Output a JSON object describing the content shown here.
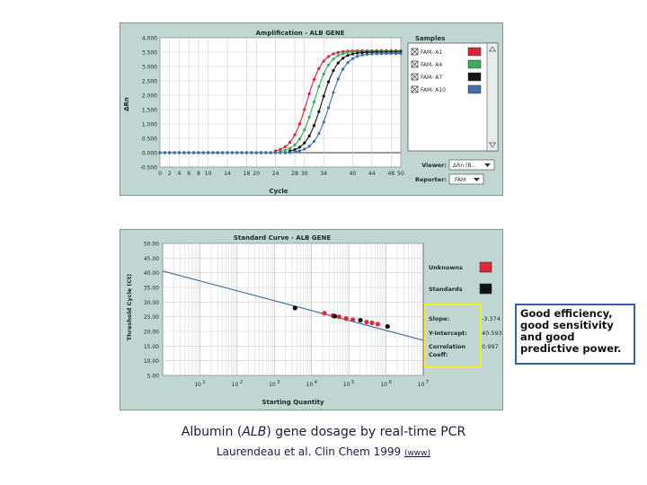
{
  "amplification": {
    "title": "Amplification - ALB GENE",
    "ylabel": "ΔRn",
    "xlabel": "Cycle",
    "y_ticks": [
      "4.000",
      "3.500",
      "3.000",
      "2.500",
      "2.000",
      "1.500",
      "1.000",
      "0.500",
      "0.000",
      "-0.500"
    ],
    "x_ticks": [
      "0",
      "2",
      "4",
      "6",
      "8",
      "10",
      "14",
      "18",
      "20",
      "24",
      "28",
      "30",
      "34",
      "40",
      "44",
      "48",
      "50"
    ],
    "samples_title": "Samples",
    "samples": [
      {
        "label": "FAM- A1",
        "color": "#d8243c"
      },
      {
        "label": "FAM- A4",
        "color": "#3cab5a"
      },
      {
        "label": "FAM- A7",
        "color": "#151515"
      },
      {
        "label": "FAM- A10",
        "color": "#3f6fa8"
      }
    ],
    "viewer_label": "Viewer:",
    "viewer_value": "ΔRn (B...",
    "reporter_label": "Reporter:",
    "reporter_value": "FAM"
  },
  "standard_curve": {
    "title": "Standard Curve - ALB GENE",
    "ylabel": "Threshold Cycle (Ct)",
    "xlabel": "Starting Quantity",
    "y_ticks": [
      "50.00",
      "45.00",
      "40.00",
      "35.00",
      "30.00",
      "25.00",
      "20.00",
      "15.00",
      "10.00",
      "5.00"
    ],
    "x_ticks": [
      {
        "base": "10",
        "exp": "1"
      },
      {
        "base": "10",
        "exp": "2"
      },
      {
        "base": "10",
        "exp": "3"
      },
      {
        "base": "10",
        "exp": "4"
      },
      {
        "base": "10",
        "exp": "5"
      },
      {
        "base": "10",
        "exp": "6"
      },
      {
        "base": "10",
        "exp": "7"
      }
    ],
    "legend_unknowns": "Unknowns",
    "legend_standards": "Standards",
    "unknowns_color": "#e0283c",
    "standards_color": "#111111",
    "slope_label": "Slope:",
    "slope_value": "-3.374",
    "intercept_label": "Y-Intercept:",
    "intercept_value": "40.593",
    "corr_label_1": "Correlation",
    "corr_label_2": "Coeff:",
    "corr_value": "0.997",
    "highlight_color": "#f2ee2a"
  },
  "callout_text": "Good efficiency, good sensitivity and good predictive power.",
  "caption": {
    "title_pre": "Albumin (",
    "title_em": "ALB",
    "title_post": ") gene dosage by real-time PCR",
    "cite": "Laurendeau et al. Clin Chem 1999",
    "link": "(www)"
  },
  "chart_data": [
    {
      "type": "line",
      "title": "Amplification - ALB GENE",
      "xlabel": "Cycle",
      "ylabel": "ΔRn",
      "xlim": [
        0,
        50
      ],
      "ylim": [
        -0.5,
        4.0
      ],
      "grid": true,
      "legend": "right",
      "baseline": 0.0,
      "series": [
        {
          "name": "FAM- A1",
          "color": "#d8243c",
          "plateau": 3.55,
          "midpoint": 30.5,
          "slope": 0.62,
          "start": 24
        },
        {
          "name": "FAM- A4",
          "color": "#3cab5a",
          "plateau": 3.53,
          "midpoint": 32.0,
          "slope": 0.62,
          "start": 25
        },
        {
          "name": "FAM- A7",
          "color": "#151515",
          "plateau": 3.5,
          "midpoint": 33.6,
          "slope": 0.62,
          "start": 27
        },
        {
          "name": "FAM- A10",
          "color": "#3f6fa8",
          "plateau": 3.45,
          "midpoint": 35.3,
          "slope": 0.62,
          "start": 28
        }
      ]
    },
    {
      "type": "scatter",
      "title": "Standard Curve - ALB GENE",
      "xlabel": "Starting Quantity",
      "ylabel": "Threshold Cycle (Ct)",
      "x_scale": "log",
      "xlim": [
        1,
        10000000
      ],
      "ylim": [
        5,
        50
      ],
      "grid": true,
      "legend": "right",
      "fit": {
        "slope": -3.374,
        "intercept": 40.593,
        "r": 0.997
      },
      "standards": [
        {
          "x": 3600,
          "y": 28.0
        },
        {
          "x": 42000,
          "y": 25.2
        },
        {
          "x": 205000,
          "y": 23.8
        },
        {
          "x": 1100000,
          "y": 21.7
        }
      ],
      "unknowns": [
        {
          "x": 22000,
          "y": 26.2
        },
        {
          "x": 37000,
          "y": 25.4
        },
        {
          "x": 55000,
          "y": 25.0
        },
        {
          "x": 85000,
          "y": 24.4
        },
        {
          "x": 128000,
          "y": 24.0
        },
        {
          "x": 300000,
          "y": 23.2
        },
        {
          "x": 420000,
          "y": 22.9
        },
        {
          "x": 600000,
          "y": 22.5
        }
      ]
    }
  ]
}
